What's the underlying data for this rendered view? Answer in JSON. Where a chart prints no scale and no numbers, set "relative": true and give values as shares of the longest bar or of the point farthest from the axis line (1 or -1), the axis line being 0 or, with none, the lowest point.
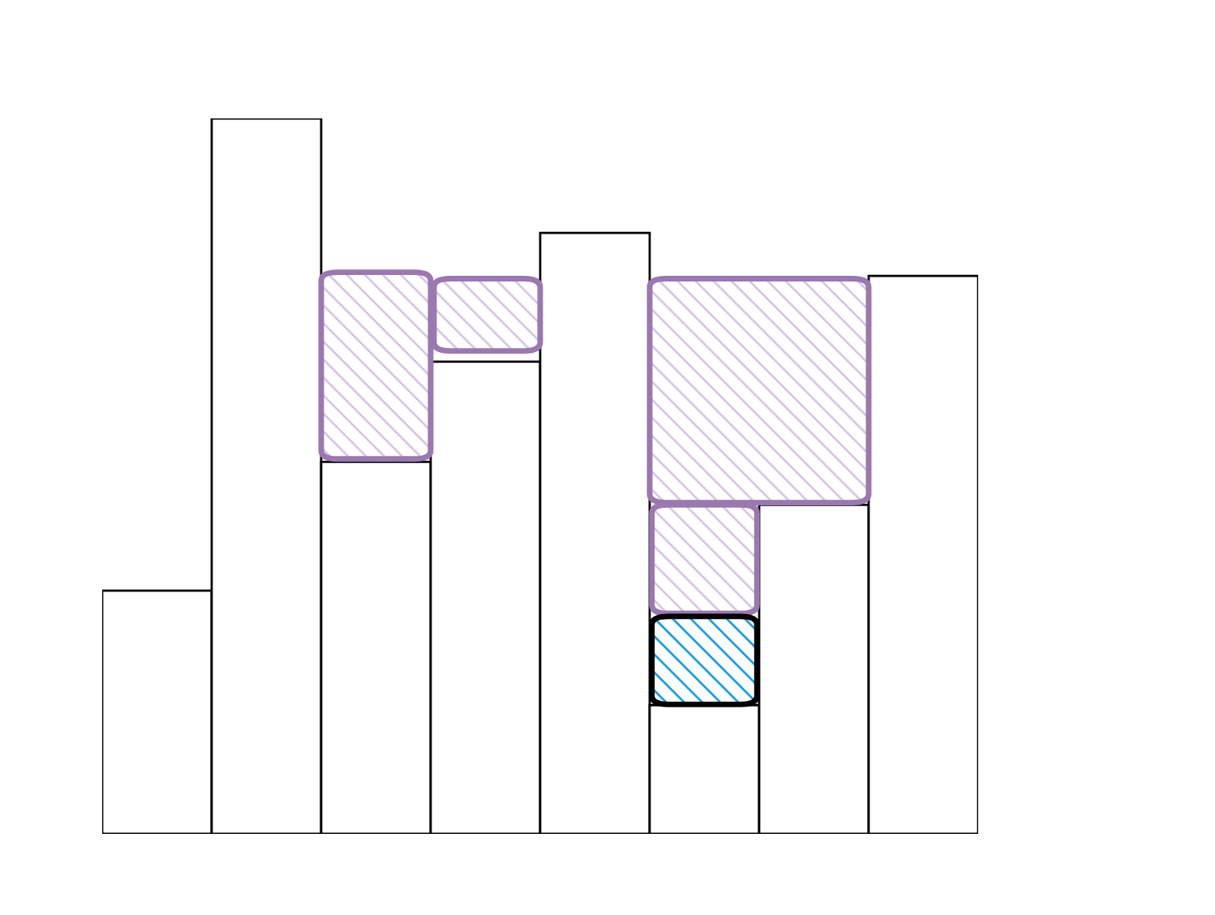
{
  "chart_data": {
    "type": "bar",
    "relative": true,
    "categories": [
      null,
      null,
      null,
      null,
      null,
      null,
      null,
      null
    ],
    "values": [
      0.34,
      1,
      0.52,
      0.66,
      0.84,
      0.18,
      0.46,
      0.78
    ],
    "color": "#ffffff",
    "grid": false
  }
}
